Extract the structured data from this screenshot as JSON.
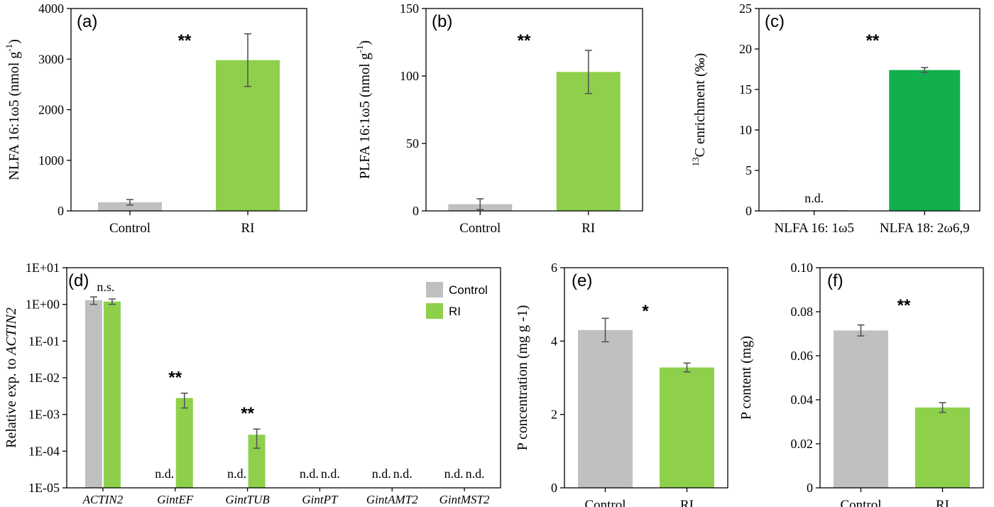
{
  "colors": {
    "control": "#c0c0c0",
    "ri": "#8ed04b",
    "nlfa18": "#12b04c",
    "error": "#555555",
    "axis": "#000000"
  },
  "legend": {
    "control": "Control",
    "ri": "RI"
  },
  "chart_data": [
    {
      "id": "a",
      "type": "bar",
      "panel_label": "(a)",
      "categories": [
        "Control",
        "RI"
      ],
      "values": [
        170,
        2980
      ],
      "errors": [
        55,
        520
      ],
      "ylim": [
        0,
        4000
      ],
      "yticks": [
        0,
        1000,
        2000,
        3000,
        4000
      ],
      "ylabel": {
        "main": "NLFA 16:1ω5 (nmol g",
        "sup": "-1",
        "tail": ")"
      },
      "significance": "**"
    },
    {
      "id": "b",
      "type": "bar",
      "panel_label": "(b)",
      "categories": [
        "Control",
        "RI"
      ],
      "values": [
        5,
        103
      ],
      "errors": [
        4,
        16
      ],
      "ylim": [
        0,
        150
      ],
      "yticks": [
        0,
        50,
        100,
        150
      ],
      "ylabel": {
        "main": "PLFA 16:1ω5 (nmol  g",
        "sup": "-1",
        "tail": ")"
      },
      "significance": "**"
    },
    {
      "id": "c",
      "type": "bar",
      "panel_label": "(c)",
      "categories": [
        "NLFA  16:  1ω5",
        "NLFA  18:  2ω6,9"
      ],
      "values": [
        0.1,
        17.4
      ],
      "errors": [
        0,
        0.3
      ],
      "ylim": [
        0,
        25
      ],
      "yticks": [
        0,
        5,
        10,
        15,
        20,
        25
      ],
      "ylabel": {
        "pre_sup": "13",
        "main": "C enrichment  (‰)"
      },
      "not_detected_label": "n.d.",
      "significance": "**"
    },
    {
      "id": "d",
      "type": "bar",
      "panel_label": "(d)",
      "yscale": "log",
      "categories": [
        "ACTIN2",
        "GintEF",
        "GintTUB",
        "GintPT",
        "GintAMT2",
        "GintMST2"
      ],
      "series": [
        {
          "name": "Control",
          "values": [
            1.3,
            null,
            null,
            null,
            null,
            null
          ],
          "err_low": [
            1.0,
            null,
            null,
            null,
            null,
            null
          ],
          "err_high": [
            1.6,
            null,
            null,
            null,
            null,
            null
          ]
        },
        {
          "name": "RI",
          "values": [
            1.2,
            0.0028,
            0.00028,
            null,
            null,
            null
          ],
          "err_low": [
            1.0,
            0.0015,
            0.00012,
            null,
            null,
            null
          ],
          "err_high": [
            1.4,
            0.0038,
            0.0004,
            null,
            null,
            null
          ]
        }
      ],
      "ylim": [
        1e-05,
        10
      ],
      "yticks": [
        "1E-05",
        "1E-04",
        "1E-03",
        "1E-02",
        "1E-01",
        "1E+00",
        "1E+01"
      ],
      "ylabel": {
        "main": "Relative exp. to ",
        "italic": "ACTIN2"
      },
      "annotations": [
        {
          "category": "ACTIN2",
          "text": "n.s."
        },
        {
          "category": "GintEF",
          "text": "**"
        },
        {
          "category": "GintTUB",
          "text": "**"
        }
      ],
      "not_detected_label": "n.d."
    },
    {
      "id": "e",
      "type": "bar",
      "panel_label": "(e)",
      "categories": [
        "Control",
        "RI"
      ],
      "values": [
        4.3,
        3.28
      ],
      "errors": [
        0.32,
        0.12
      ],
      "ylim": [
        0,
        6
      ],
      "yticks": [
        0,
        2,
        4,
        6
      ],
      "ylabel": {
        "main": "P concentration (mg g -1)"
      },
      "significance": "*"
    },
    {
      "id": "f",
      "type": "bar",
      "panel_label": "(f)",
      "categories": [
        "Control",
        "RI"
      ],
      "values": [
        0.0715,
        0.0365
      ],
      "errors": [
        0.0025,
        0.0022
      ],
      "ylim": [
        0,
        0.1
      ],
      "yticks": [
        0,
        0.02,
        0.04,
        0.06,
        0.08,
        0.1
      ],
      "ytick_labels": [
        "0",
        "0.02",
        "0.04",
        "0.06",
        "0.08",
        "0.10"
      ],
      "ylabel": {
        "main": "P content (mg)"
      },
      "significance": "**"
    }
  ]
}
